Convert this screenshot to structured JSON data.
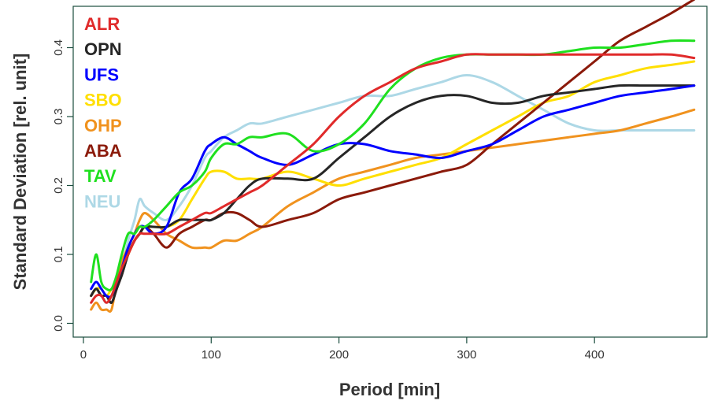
{
  "chart_data": {
    "type": "line",
    "title": "",
    "xlabel": "Period [min]",
    "ylabel": "Standard Deviation [rel. unit]",
    "xlim": [
      -8,
      488
    ],
    "ylim": [
      -0.02,
      0.46
    ],
    "xticks": [
      0,
      100,
      200,
      300,
      400
    ],
    "yticks": [
      0.0,
      0.1,
      0.2,
      0.3,
      0.4
    ],
    "xtick_labels": [
      "0",
      "100",
      "200",
      "300",
      "400"
    ],
    "ytick_labels": [
      "0.0",
      "0.1",
      "0.2",
      "0.3",
      "0.4"
    ],
    "grid": false,
    "legend_position": "top-left",
    "series": [
      {
        "name": "NEU",
        "color": "#add8e6",
        "x": [
          6,
          10,
          14,
          18,
          22,
          26,
          30,
          35,
          40,
          44,
          48,
          55,
          65,
          75,
          85,
          95,
          100,
          110,
          120,
          130,
          140,
          160,
          180,
          200,
          220,
          240,
          260,
          280,
          300,
          320,
          340,
          360,
          380,
          400,
          420,
          440,
          460,
          478
        ],
        "y": [
          0.04,
          0.05,
          0.04,
          0.03,
          0.04,
          0.06,
          0.08,
          0.12,
          0.15,
          0.18,
          0.17,
          0.16,
          0.15,
          0.17,
          0.2,
          0.24,
          0.25,
          0.27,
          0.28,
          0.29,
          0.29,
          0.3,
          0.31,
          0.32,
          0.33,
          0.33,
          0.34,
          0.35,
          0.36,
          0.35,
          0.33,
          0.31,
          0.29,
          0.28,
          0.28,
          0.28,
          0.28,
          0.28
        ]
      },
      {
        "name": "OHP",
        "color": "#f0921e",
        "x": [
          6,
          10,
          14,
          18,
          22,
          26,
          30,
          35,
          40,
          44,
          48,
          55,
          65,
          75,
          85,
          95,
          100,
          110,
          120,
          130,
          140,
          160,
          180,
          200,
          220,
          240,
          260,
          280,
          300,
          320,
          340,
          360,
          380,
          400,
          420,
          440,
          460,
          478
        ],
        "y": [
          0.02,
          0.03,
          0.02,
          0.02,
          0.02,
          0.06,
          0.09,
          0.11,
          0.13,
          0.15,
          0.16,
          0.15,
          0.13,
          0.12,
          0.11,
          0.11,
          0.11,
          0.12,
          0.12,
          0.13,
          0.14,
          0.17,
          0.19,
          0.21,
          0.22,
          0.23,
          0.24,
          0.245,
          0.25,
          0.255,
          0.26,
          0.265,
          0.27,
          0.275,
          0.28,
          0.29,
          0.3,
          0.31
        ]
      },
      {
        "name": "SBO",
        "color": "#ffdf00",
        "x": [
          6,
          10,
          14,
          18,
          22,
          26,
          30,
          35,
          40,
          44,
          48,
          55,
          65,
          75,
          85,
          95,
          100,
          110,
          120,
          130,
          140,
          160,
          180,
          200,
          220,
          240,
          260,
          280,
          300,
          320,
          340,
          360,
          380,
          400,
          420,
          440,
          460,
          478
        ],
        "y": [
          0.04,
          0.05,
          0.05,
          0.04,
          0.05,
          0.06,
          0.08,
          0.1,
          0.12,
          0.13,
          0.14,
          0.14,
          0.14,
          0.15,
          0.18,
          0.21,
          0.22,
          0.22,
          0.21,
          0.21,
          0.21,
          0.22,
          0.21,
          0.2,
          0.21,
          0.22,
          0.23,
          0.24,
          0.26,
          0.28,
          0.3,
          0.32,
          0.33,
          0.35,
          0.36,
          0.37,
          0.375,
          0.38
        ]
      },
      {
        "name": "ABA",
        "color": "#8b1a0a",
        "x": [
          6,
          10,
          14,
          18,
          22,
          26,
          30,
          35,
          40,
          44,
          48,
          55,
          65,
          75,
          85,
          95,
          100,
          110,
          120,
          130,
          140,
          160,
          180,
          200,
          220,
          240,
          260,
          280,
          300,
          320,
          340,
          360,
          380,
          400,
          420,
          440,
          460,
          478
        ],
        "y": [
          0.04,
          0.05,
          0.04,
          0.04,
          0.03,
          0.05,
          0.07,
          0.1,
          0.12,
          0.13,
          0.14,
          0.13,
          0.11,
          0.13,
          0.14,
          0.15,
          0.15,
          0.16,
          0.16,
          0.15,
          0.14,
          0.15,
          0.16,
          0.18,
          0.19,
          0.2,
          0.21,
          0.22,
          0.23,
          0.26,
          0.29,
          0.32,
          0.35,
          0.38,
          0.41,
          0.43,
          0.45,
          0.47
        ]
      },
      {
        "name": "OPN",
        "color": "#262626",
        "x": [
          6,
          10,
          14,
          18,
          22,
          26,
          30,
          35,
          40,
          44,
          48,
          55,
          65,
          75,
          85,
          95,
          100,
          110,
          120,
          130,
          140,
          160,
          180,
          200,
          220,
          240,
          260,
          280,
          300,
          320,
          340,
          360,
          380,
          400,
          420,
          440,
          460,
          478
        ],
        "y": [
          0.04,
          0.05,
          0.04,
          0.04,
          0.03,
          0.05,
          0.07,
          0.1,
          0.12,
          0.13,
          0.14,
          0.14,
          0.14,
          0.15,
          0.15,
          0.15,
          0.15,
          0.16,
          0.18,
          0.2,
          0.21,
          0.21,
          0.21,
          0.24,
          0.27,
          0.3,
          0.32,
          0.33,
          0.33,
          0.32,
          0.32,
          0.33,
          0.335,
          0.34,
          0.345,
          0.345,
          0.345,
          0.345
        ]
      },
      {
        "name": "UFS",
        "color": "#0000ff",
        "x": [
          6,
          10,
          14,
          18,
          22,
          26,
          30,
          35,
          40,
          44,
          48,
          55,
          65,
          75,
          85,
          95,
          100,
          110,
          120,
          130,
          140,
          160,
          180,
          200,
          220,
          240,
          260,
          280,
          300,
          320,
          340,
          360,
          380,
          400,
          420,
          440,
          460,
          478
        ],
        "y": [
          0.05,
          0.06,
          0.05,
          0.04,
          0.04,
          0.06,
          0.08,
          0.11,
          0.13,
          0.14,
          0.14,
          0.13,
          0.14,
          0.19,
          0.21,
          0.25,
          0.26,
          0.27,
          0.26,
          0.25,
          0.24,
          0.23,
          0.245,
          0.26,
          0.26,
          0.25,
          0.245,
          0.24,
          0.25,
          0.26,
          0.28,
          0.3,
          0.31,
          0.32,
          0.33,
          0.335,
          0.34,
          0.345
        ]
      },
      {
        "name": "TAV",
        "color": "#1fe01f",
        "x": [
          6,
          10,
          14,
          18,
          22,
          26,
          30,
          35,
          40,
          44,
          48,
          55,
          65,
          75,
          85,
          95,
          100,
          110,
          120,
          130,
          140,
          160,
          180,
          200,
          220,
          240,
          260,
          280,
          300,
          320,
          340,
          360,
          380,
          400,
          420,
          440,
          460,
          478
        ],
        "y": [
          0.06,
          0.1,
          0.06,
          0.05,
          0.05,
          0.07,
          0.1,
          0.13,
          0.13,
          0.14,
          0.14,
          0.15,
          0.17,
          0.19,
          0.2,
          0.22,
          0.24,
          0.26,
          0.26,
          0.27,
          0.27,
          0.275,
          0.25,
          0.26,
          0.29,
          0.34,
          0.37,
          0.385,
          0.39,
          0.39,
          0.39,
          0.39,
          0.395,
          0.4,
          0.4,
          0.405,
          0.41,
          0.41
        ]
      },
      {
        "name": "ALR",
        "color": "#e02a2a",
        "x": [
          6,
          10,
          14,
          18,
          22,
          26,
          30,
          35,
          40,
          44,
          48,
          55,
          65,
          75,
          85,
          95,
          100,
          110,
          120,
          130,
          140,
          160,
          180,
          200,
          220,
          240,
          260,
          280,
          300,
          320,
          340,
          360,
          380,
          400,
          420,
          440,
          460,
          478
        ],
        "y": [
          0.03,
          0.04,
          0.04,
          0.03,
          0.04,
          0.06,
          0.08,
          0.1,
          0.12,
          0.13,
          0.13,
          0.13,
          0.13,
          0.14,
          0.15,
          0.16,
          0.16,
          0.17,
          0.18,
          0.19,
          0.2,
          0.23,
          0.26,
          0.3,
          0.33,
          0.35,
          0.37,
          0.38,
          0.39,
          0.39,
          0.39,
          0.39,
          0.39,
          0.39,
          0.39,
          0.39,
          0.39,
          0.385
        ]
      }
    ],
    "legend_order": [
      "ALR",
      "OPN",
      "UFS",
      "SBO",
      "OHP",
      "ABA",
      "TAV",
      "NEU"
    ]
  }
}
